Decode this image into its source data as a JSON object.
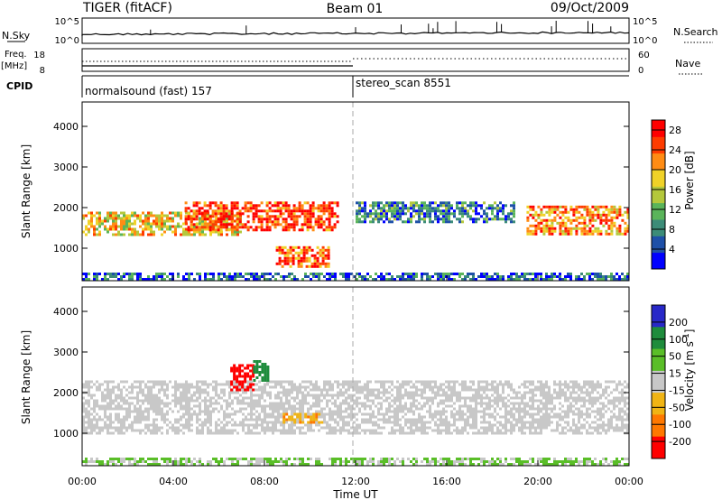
{
  "header": {
    "radar_title": "TIGER (fitACF)",
    "beam_label": "Beam 01",
    "date_label": "09/Oct/2009"
  },
  "top_panels": {
    "nsky": {
      "label": "N.Sky",
      "left_ticks": [
        "10^5",
        "10^0"
      ],
      "right_ticks": [
        "10^5",
        "10^0"
      ],
      "right_label": "N.Search"
    },
    "freq": {
      "label_line1": "Freq.",
      "label_line2": "[MHz]",
      "left_ticks": [
        "18",
        "8"
      ],
      "right_ticks": [
        "60",
        "0"
      ],
      "right_label": "Nave"
    },
    "cpid": {
      "label": "CPID",
      "segments": [
        {
          "name": "normalsound (fast) 157",
          "start_hour": 0,
          "end_hour": 12
        },
        {
          "name": "stereo_scan 8551",
          "start_hour": 12,
          "end_hour": 24
        }
      ]
    }
  },
  "time_axis": {
    "ticks": [
      "00:00",
      "04:00",
      "08:00",
      "12:00",
      "16:00",
      "20:00",
      "00:00"
    ],
    "label": "Time UT",
    "range_hours": [
      0,
      24
    ]
  },
  "chart_data": [
    {
      "type": "heatmap",
      "panel": "power",
      "ylabel": "Slant Range [km]",
      "yticks": [
        1000,
        2000,
        3000,
        4000
      ],
      "ylim": [
        200,
        4600
      ],
      "colorbar": {
        "label": "Power [dB]",
        "ticks": [
          4,
          8,
          12,
          16,
          20,
          24,
          28
        ],
        "range": [
          0,
          30
        ],
        "colors": [
          "#0000ff",
          "#1e50a8",
          "#3c8c78",
          "#5ab45a",
          "#b4c83c",
          "#f0d228",
          "#ff8c14",
          "#ff3c00",
          "#ff0000"
        ]
      },
      "bands": [
        {
          "t_start": 0,
          "t_end": 7,
          "r_low": 1300,
          "r_high": 1900,
          "value": 18
        },
        {
          "t_start": 4.5,
          "t_end": 11.2,
          "r_low": 1450,
          "r_high": 2150,
          "value": 26
        },
        {
          "t_start": 8.5,
          "t_end": 10.8,
          "r_low": 550,
          "r_high": 1050,
          "value": 24
        },
        {
          "t_start": 12,
          "t_end": 19,
          "r_low": 1650,
          "r_high": 2150,
          "value": 8
        },
        {
          "t_start": 19.5,
          "t_end": 24,
          "r_low": 1350,
          "r_high": 2050,
          "value": 22
        },
        {
          "t_start": 0,
          "t_end": 24,
          "r_low": 200,
          "r_high": 400,
          "value": 6
        }
      ]
    },
    {
      "type": "heatmap",
      "panel": "velocity",
      "ylabel": "Slant Range [km]",
      "yticks": [
        1000,
        2000,
        3000,
        4000
      ],
      "ylim": [
        200,
        4600
      ],
      "colorbar": {
        "label": "Velocity [m s^-1]",
        "ticks": [
          200,
          100,
          50,
          15,
          -15,
          -50,
          -100,
          -200
        ],
        "range": [
          -250,
          250
        ],
        "colors": [
          "#2828c8",
          "#1e8c3c",
          "#5abe28",
          "#c8c8c8",
          "#f0b414",
          "#ff7800",
          "#ff0000"
        ]
      },
      "bands": [
        {
          "t_start": 0,
          "t_end": 24,
          "r_low": 1000,
          "r_high": 2300,
          "value": 0
        },
        {
          "t_start": 6.5,
          "t_end": 7.5,
          "r_low": 2050,
          "r_high": 2700,
          "value": -200
        },
        {
          "t_start": 7.5,
          "t_end": 8.2,
          "r_low": 2300,
          "r_high": 2800,
          "value": 150
        },
        {
          "t_start": 8.8,
          "t_end": 10.5,
          "r_low": 1250,
          "r_high": 1500,
          "value": -100
        },
        {
          "t_start": 0,
          "t_end": 24,
          "r_low": 200,
          "r_high": 400,
          "value": 40
        }
      ]
    }
  ]
}
